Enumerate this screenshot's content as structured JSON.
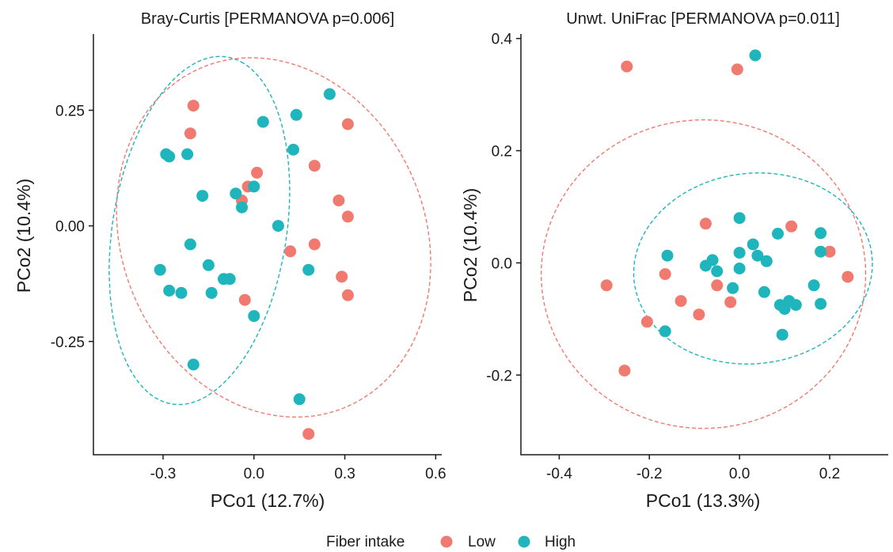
{
  "legend": {
    "title": "Fiber intake",
    "entries": [
      {
        "label": "Low",
        "color": "#F07A6F"
      },
      {
        "label": "High",
        "color": "#1FB5BC"
      }
    ]
  },
  "chart_data": [
    {
      "type": "scatter",
      "title": "Bray-Curtis [PERMANOVA p=0.006]",
      "xlabel": "PCo1 (12.7%)",
      "ylabel": "PCo2 (10.4%)",
      "xlim": [
        -0.53,
        0.62
      ],
      "ylim": [
        -0.495,
        0.415
      ],
      "xticks": [
        -0.3,
        0.0,
        0.3,
        0.6
      ],
      "xtick_labels": [
        "-0.3",
        "0.0",
        "0.3",
        "0.6"
      ],
      "yticks": [
        -0.25,
        0.0,
        0.25
      ],
      "ytick_labels": [
        "-0.25",
        "0.00",
        "0.25"
      ],
      "grid": false,
      "series": [
        {
          "name": "Low",
          "color": "#F07A6F",
          "points": [
            [
              -0.2,
              0.26
            ],
            [
              -0.21,
              0.2
            ],
            [
              0.31,
              0.22
            ],
            [
              0.2,
              0.13
            ],
            [
              0.01,
              0.115
            ],
            [
              -0.02,
              0.085
            ],
            [
              -0.04,
              0.055
            ],
            [
              0.28,
              0.055
            ],
            [
              0.31,
              0.02
            ],
            [
              0.2,
              -0.04
            ],
            [
              0.12,
              -0.055
            ],
            [
              0.29,
              -0.11
            ],
            [
              0.31,
              -0.15
            ],
            [
              -0.03,
              -0.16
            ],
            [
              0.18,
              -0.45
            ]
          ],
          "ellipse": {
            "cx": 0.065,
            "cy": -0.025,
            "rx": 0.525,
            "ry": 0.38,
            "angle_deg": -13
          }
        },
        {
          "name": "High",
          "color": "#1FB5BC",
          "points": [
            [
              0.25,
              0.285
            ],
            [
              0.14,
              0.24
            ],
            [
              0.03,
              0.225
            ],
            [
              0.13,
              0.165
            ],
            [
              -0.29,
              0.155
            ],
            [
              -0.28,
              0.15
            ],
            [
              -0.22,
              0.155
            ],
            [
              0.0,
              0.085
            ],
            [
              -0.17,
              0.065
            ],
            [
              -0.06,
              0.07
            ],
            [
              -0.04,
              0.04
            ],
            [
              0.08,
              0.0
            ],
            [
              -0.21,
              -0.04
            ],
            [
              -0.31,
              -0.095
            ],
            [
              -0.15,
              -0.085
            ],
            [
              0.18,
              -0.095
            ],
            [
              -0.08,
              -0.115
            ],
            [
              -0.1,
              -0.115
            ],
            [
              -0.28,
              -0.14
            ],
            [
              -0.24,
              -0.145
            ],
            [
              -0.14,
              -0.145
            ],
            [
              0.0,
              -0.195
            ],
            [
              -0.2,
              -0.3
            ],
            [
              0.15,
              -0.375
            ]
          ],
          "ellipse": {
            "cx": -0.18,
            "cy": -0.01,
            "rx": 0.39,
            "ry": 0.28,
            "angle_deg": 68
          }
        }
      ]
    },
    {
      "type": "scatter",
      "title": "Unwt. UniFrac [PERMANOVA p=0.011]",
      "xlabel": "PCo1 (13.3%)",
      "ylabel": "PCo2 (10.4%)",
      "xlim": [
        -0.485,
        0.33
      ],
      "ylim": [
        -0.342,
        0.408
      ],
      "xticks": [
        -0.4,
        -0.2,
        0.0,
        0.2
      ],
      "xtick_labels": [
        "-0.4",
        "-0.2",
        "0.0",
        "0.2"
      ],
      "yticks": [
        -0.2,
        0.0,
        0.2,
        0.4
      ],
      "ytick_labels": [
        "-0.2",
        "0.0",
        "0.2",
        "0.4"
      ],
      "grid": false,
      "series": [
        {
          "name": "Low",
          "color": "#F07A6F",
          "points": [
            [
              -0.25,
              0.35
            ],
            [
              -0.005,
              0.345
            ],
            [
              0.115,
              0.065
            ],
            [
              -0.075,
              0.07
            ],
            [
              0.2,
              0.02
            ],
            [
              0.24,
              -0.025
            ],
            [
              -0.165,
              -0.02
            ],
            [
              -0.295,
              -0.04
            ],
            [
              -0.05,
              -0.04
            ],
            [
              -0.13,
              -0.068
            ],
            [
              -0.02,
              -0.07
            ],
            [
              -0.09,
              -0.092
            ],
            [
              -0.205,
              -0.105
            ],
            [
              -0.255,
              -0.192
            ]
          ],
          "ellipse": {
            "cx": -0.08,
            "cy": -0.02,
            "rx": 0.36,
            "ry": 0.275,
            "angle_deg": 0
          }
        },
        {
          "name": "High",
          "color": "#1FB5BC",
          "points": [
            [
              0.035,
              0.37
            ],
            [
              0.0,
              0.08
            ],
            [
              0.085,
              0.052
            ],
            [
              0.18,
              0.053
            ],
            [
              0.03,
              0.033
            ],
            [
              0.0,
              0.018
            ],
            [
              0.04,
              0.013
            ],
            [
              0.18,
              0.02
            ],
            [
              -0.16,
              0.013
            ],
            [
              -0.06,
              0.005
            ],
            [
              0.06,
              0.003
            ],
            [
              -0.075,
              -0.005
            ],
            [
              -0.05,
              -0.015
            ],
            [
              0.0,
              -0.01
            ],
            [
              0.165,
              -0.04
            ],
            [
              -0.015,
              -0.045
            ],
            [
              0.055,
              -0.052
            ],
            [
              0.11,
              -0.068
            ],
            [
              0.09,
              -0.075
            ],
            [
              0.125,
              -0.075
            ],
            [
              0.18,
              -0.073
            ],
            [
              0.1,
              -0.082
            ],
            [
              -0.165,
              -0.122
            ],
            [
              0.095,
              -0.128
            ]
          ],
          "ellipse": {
            "cx": 0.03,
            "cy": -0.01,
            "rx": 0.265,
            "ry": 0.17,
            "angle_deg": 3
          }
        }
      ]
    }
  ]
}
